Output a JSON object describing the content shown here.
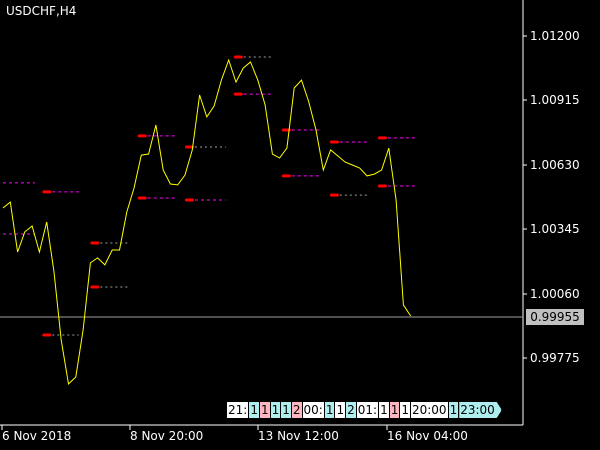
{
  "title": "USDCHF,H4",
  "price_axis": [
    "1.01200",
    "1.00915",
    "1.00630",
    "1.00345",
    "1.00060",
    "0.99775"
  ],
  "current_price": "0.99955",
  "date_axis": [
    "6 Nov 2018",
    "8 Nov 20:00",
    "13 Nov 12:00",
    "16 Nov 04:00"
  ],
  "colors": {
    "line": "#ffff00",
    "level_magenta": "#ff00ff",
    "level_gray": "#a0a0a0",
    "marker": "#ff0000",
    "cyan": "#aeeeee",
    "pink": "#ffb6c1",
    "white": "#ffffff"
  },
  "chart_data": {
    "type": "line",
    "ylim": [
      0.996,
      1.0128
    ],
    "series": [
      {
        "values": [
          1.00439,
          1.00465,
          1.00244,
          1.00333,
          1.00359,
          1.00244,
          1.00377,
          1.00156,
          0.99855,
          0.9966,
          0.99691,
          0.99899,
          1.00196,
          1.00218,
          1.00187,
          1.00253,
          1.00253,
          1.00421,
          1.00527,
          1.00673,
          1.00678,
          1.00806,
          1.00607,
          1.00545,
          1.00541,
          1.00585,
          1.00696,
          1.00939,
          1.00842,
          1.0089,
          1.01005,
          1.01094,
          1.00996,
          1.01058,
          1.01085,
          1.01005,
          1.00895,
          1.00678,
          1.0066,
          1.00704,
          1.0097,
          1.01005,
          1.00908,
          1.00784,
          1.00607,
          1.00696,
          1.00669,
          1.00642,
          1.00629,
          1.00616,
          1.00581,
          1.00589,
          1.00607,
          1.00704,
          1.00474,
          1.0001,
          0.99961
        ]
      }
    ],
    "levels": [
      {
        "from": 0,
        "to": 4.4,
        "price": 1.0055,
        "color": "magenta",
        "marker": false
      },
      {
        "from": 0,
        "to": 4.4,
        "price": 1.00324,
        "color": "magenta",
        "marker": false
      },
      {
        "from": 5.4,
        "to": 10.9,
        "price": 1.0051,
        "color": "magenta",
        "marker": true
      },
      {
        "from": 5.4,
        "to": 10.4,
        "price": 0.99877,
        "color": "gray",
        "marker": true
      },
      {
        "from": 12,
        "to": 17.5,
        "price": 1.00284,
        "color": "gray",
        "marker": true
      },
      {
        "from": 12,
        "to": 17.5,
        "price": 1.00089,
        "color": "gray",
        "marker": true
      },
      {
        "from": 18.5,
        "to": 24,
        "price": 1.00758,
        "color": "magenta",
        "marker": true
      },
      {
        "from": 18.5,
        "to": 24,
        "price": 1.00483,
        "color": "magenta",
        "marker": true
      },
      {
        "from": 25,
        "to": 30.6,
        "price": 1.00709,
        "color": "gray",
        "marker": true
      },
      {
        "from": 25,
        "to": 30.6,
        "price": 1.00474,
        "color": "magenta",
        "marker": true
      },
      {
        "from": 31.7,
        "to": 37.2,
        "price": 1.01107,
        "color": "gray",
        "marker": true
      },
      {
        "from": 31.7,
        "to": 37.2,
        "price": 1.00943,
        "color": "magenta",
        "marker": true
      },
      {
        "from": 38.3,
        "to": 43.8,
        "price": 1.00784,
        "color": "magenta",
        "marker": true
      },
      {
        "from": 38.3,
        "to": 43.8,
        "price": 1.00581,
        "color": "magenta",
        "marker": true
      },
      {
        "from": 44.9,
        "to": 50.4,
        "price": 1.00731,
        "color": "magenta",
        "marker": true
      },
      {
        "from": 44.9,
        "to": 50.4,
        "price": 1.00496,
        "color": "gray",
        "marker": true
      },
      {
        "from": 51.5,
        "to": 57,
        "price": 1.00749,
        "color": "magenta",
        "marker": true
      },
      {
        "from": 51.5,
        "to": 57,
        "price": 1.00536,
        "color": "magenta",
        "marker": true
      }
    ]
  },
  "time_boxes": [
    {
      "text": "21:",
      "color": "white"
    },
    {
      "text": "1",
      "color": "cyan"
    },
    {
      "text": "1",
      "color": "pink"
    },
    {
      "text": "1",
      "color": "cyan"
    },
    {
      "text": "1",
      "color": "cyan"
    },
    {
      "text": "2",
      "color": "pink"
    },
    {
      "text": "00:",
      "color": "white"
    },
    {
      "text": "1",
      "color": "cyan"
    },
    {
      "text": "1",
      "color": "white"
    },
    {
      "text": "2",
      "color": "cyan"
    },
    {
      "text": "01:",
      "color": "white"
    },
    {
      "text": "1",
      "color": "white"
    },
    {
      "text": "1",
      "color": "pink"
    },
    {
      "text": "1",
      "color": "white"
    },
    {
      "text": "20:00",
      "color": "white"
    },
    {
      "text": "1",
      "color": "cyan"
    },
    {
      "text": "23:00",
      "color": "cyan"
    }
  ]
}
